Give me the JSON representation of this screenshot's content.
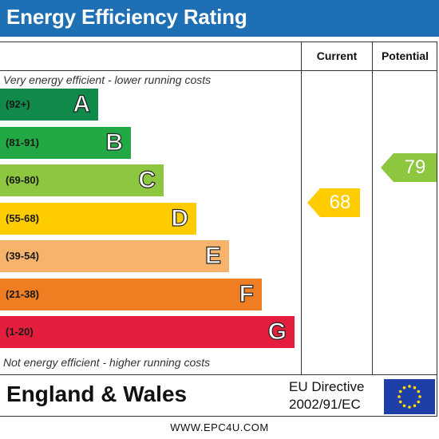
{
  "header": {
    "title": "Energy Efficiency Rating"
  },
  "columns": {
    "current": "Current",
    "potential": "Potential"
  },
  "captions": {
    "top": "Very energy efficient - lower running costs",
    "bottom": "Not energy efficient - higher running costs"
  },
  "chart_data": {
    "type": "bar",
    "title": "Energy Efficiency Rating",
    "categories": [
      "A",
      "B",
      "C",
      "D",
      "E",
      "F",
      "G"
    ],
    "ranges": [
      "(92+)",
      "(81-91)",
      "(69-80)",
      "(55-68)",
      "(39-54)",
      "(21-38)",
      "(1-20)"
    ],
    "colors": [
      "#0f8a4a",
      "#22a844",
      "#8dc63f",
      "#ffcc00",
      "#f7b36b",
      "#ef7d22",
      "#e31d3c"
    ],
    "current": {
      "value": 68,
      "band": "D",
      "color": "#ffcc00"
    },
    "potential": {
      "value": 79,
      "band": "C",
      "color": "#8dc63f"
    }
  },
  "footer": {
    "country": "England & Wales",
    "directive_line1": "EU Directive",
    "directive_line2": "2002/91/EC",
    "website": "WWW.EPC4U.COM"
  }
}
